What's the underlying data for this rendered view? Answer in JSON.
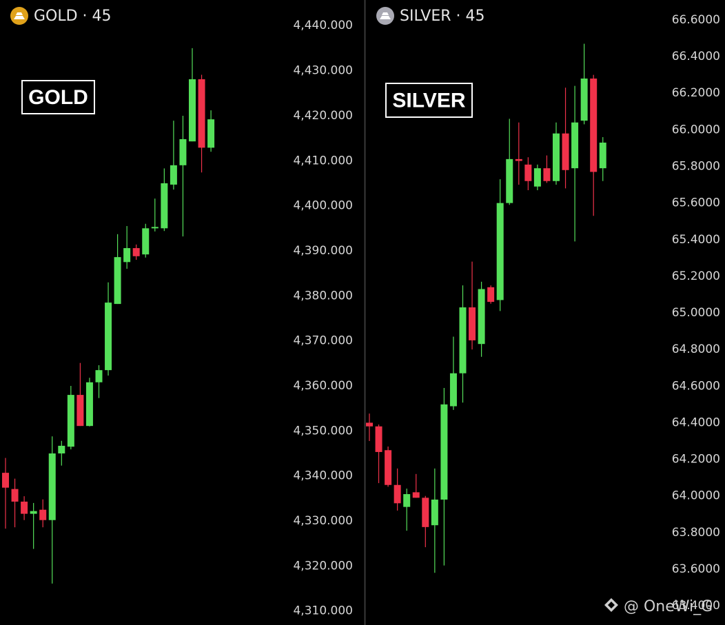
{
  "chart_data": [
    {
      "type": "candlestick",
      "title": "GOLD · 45",
      "annotation": "GOLD",
      "icon_color": "#e0a21b",
      "up_color": "#55e05a",
      "down_color": "#f0324a",
      "ylim": [
        4306.9,
        4445.7
      ],
      "yticks": [
        {
          "value": 4440,
          "label": "4,440.000"
        },
        {
          "value": 4430,
          "label": "4,430.000"
        },
        {
          "value": 4420,
          "label": "4,420.000"
        },
        {
          "value": 4410,
          "label": "4,410.000"
        },
        {
          "value": 4400,
          "label": "4,400.000"
        },
        {
          "value": 4390,
          "label": "4,390.000"
        },
        {
          "value": 4380,
          "label": "4,380.000"
        },
        {
          "value": 4370,
          "label": "4,370.000"
        },
        {
          "value": 4360,
          "label": "4,360.000"
        },
        {
          "value": 4350,
          "label": "4,350.000"
        },
        {
          "value": 4340,
          "label": "4,340.000"
        },
        {
          "value": 4330,
          "label": "4,330.000"
        },
        {
          "value": 4320,
          "label": "4,320.000"
        },
        {
          "value": 4310,
          "label": "4,310.000"
        }
      ],
      "open": [
        4340.7,
        4337.1,
        4334.3,
        4331.6,
        4332.5,
        4330.2,
        4345.0,
        4346.5,
        4358.0,
        4351.1,
        4360.8,
        4363.5,
        4378.2,
        4387.5,
        4390.6,
        4389.2,
        4395.0,
        4395.0,
        4404.7,
        4409.0,
        4414.3,
        4428.1,
        4412.9
      ],
      "high": [
        4344.0,
        4339.4,
        4335.5,
        4334.0,
        4334.8,
        4348.8,
        4347.8,
        4360.0,
        4365.1,
        4361.8,
        4364.6,
        4383.0,
        4393.7,
        4395.5,
        4391.4,
        4396.0,
        4401.6,
        4408.3,
        4418.9,
        4420.0,
        4435.0,
        4429.1,
        4421.2
      ],
      "low": [
        4328.3,
        4328.6,
        4330.2,
        4323.8,
        4328.6,
        4316.1,
        4342.3,
        4345.9,
        4351.1,
        4351.0,
        4357.3,
        4362.3,
        4378.2,
        4386.0,
        4388.0,
        4388.5,
        4394.3,
        4394.4,
        4403.6,
        4393.2,
        4414.3,
        4407.4,
        4412.0
      ],
      "close": [
        4337.4,
        4334.3,
        4331.6,
        4332.2,
        4330.2,
        4345.0,
        4346.7,
        4358.0,
        4351.1,
        4360.8,
        4363.5,
        4378.5,
        4388.6,
        4390.6,
        4388.8,
        4395.0,
        4395.3,
        4405.0,
        4409.0,
        4414.8,
        4428.1,
        4412.9,
        4419.2
      ]
    },
    {
      "type": "candlestick",
      "title": "SILVER · 45",
      "annotation": "SILVER",
      "icon_color": "#a9a9b3",
      "up_color": "#55e05a",
      "down_color": "#f0324a",
      "ylim": [
        63.295,
        66.709
      ],
      "yticks": [
        {
          "value": 66.6,
          "label": "66.6000"
        },
        {
          "value": 66.4,
          "label": "66.4000"
        },
        {
          "value": 66.2,
          "label": "66.2000"
        },
        {
          "value": 66.0,
          "label": "66.0000"
        },
        {
          "value": 65.8,
          "label": "65.8000"
        },
        {
          "value": 65.6,
          "label": "65.6000"
        },
        {
          "value": 65.4,
          "label": "65.4000"
        },
        {
          "value": 65.2,
          "label": "65.2000"
        },
        {
          "value": 65.0,
          "label": "65.0000"
        },
        {
          "value": 64.8,
          "label": "64.8000"
        },
        {
          "value": 64.6,
          "label": "64.6000"
        },
        {
          "value": 64.4,
          "label": "64.4000"
        },
        {
          "value": 64.2,
          "label": "64.2000"
        },
        {
          "value": 64.0,
          "label": "64.0000"
        },
        {
          "value": 63.8,
          "label": "63.8000"
        },
        {
          "value": 63.6,
          "label": "63.6000"
        },
        {
          "value": 63.4,
          "label": "63.4000"
        }
      ],
      "open": [
        64.4,
        64.38,
        64.25,
        64.06,
        63.94,
        64.02,
        63.99,
        63.84,
        63.98,
        64.49,
        64.67,
        65.03,
        64.83,
        65.14,
        65.07,
        65.6,
        65.84,
        65.81,
        65.69,
        65.79,
        65.72,
        65.98,
        65.79,
        66.05,
        66.28,
        65.79
      ],
      "high": [
        64.45,
        64.39,
        64.27,
        64.15,
        64.04,
        64.12,
        64.0,
        64.15,
        64.59,
        64.87,
        65.15,
        65.28,
        65.17,
        65.15,
        65.73,
        66.06,
        66.04,
        65.85,
        65.81,
        65.86,
        66.04,
        66.23,
        66.24,
        66.47,
        66.3,
        65.96
      ],
      "low": [
        64.3,
        64.07,
        64.05,
        63.92,
        63.81,
        63.99,
        63.72,
        63.58,
        63.62,
        64.47,
        64.51,
        64.8,
        64.76,
        65.05,
        65.01,
        65.59,
        65.7,
        65.67,
        65.67,
        65.71,
        65.7,
        65.68,
        65.39,
        66.03,
        65.53,
        65.72
      ],
      "close": [
        64.38,
        64.24,
        64.06,
        63.96,
        64.01,
        63.99,
        63.83,
        63.98,
        64.5,
        64.67,
        65.03,
        64.85,
        65.13,
        65.06,
        65.6,
        65.84,
        65.83,
        65.72,
        65.79,
        65.72,
        65.98,
        65.78,
        66.04,
        66.28,
        65.77,
        65.93
      ]
    }
  ],
  "watermark": "@ OneWi_G"
}
